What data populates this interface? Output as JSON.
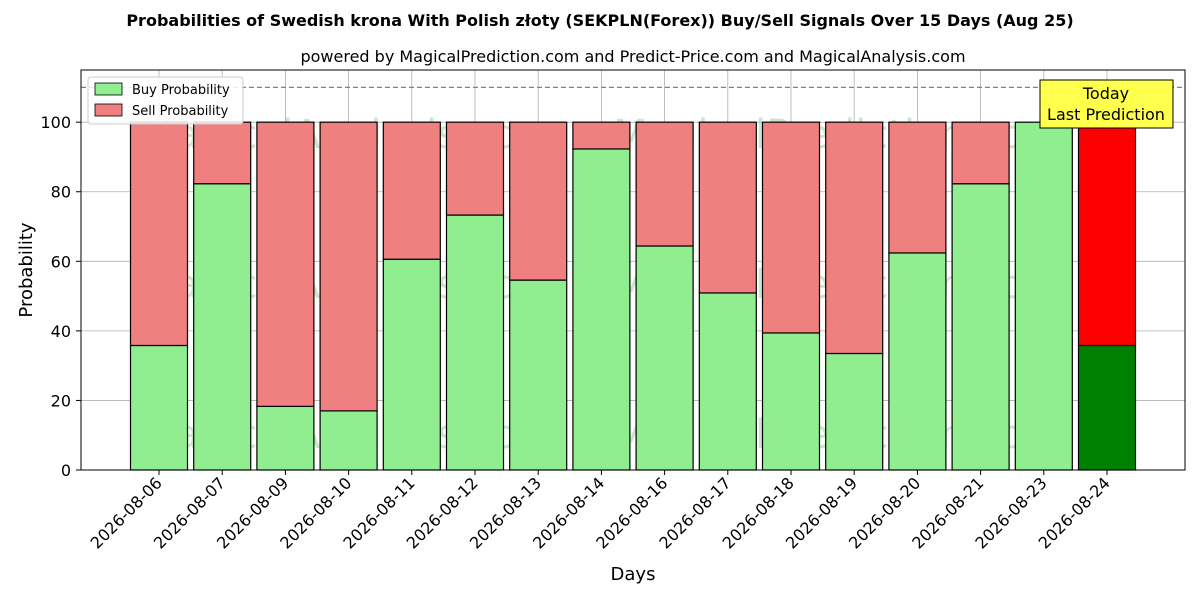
{
  "chart_data": {
    "type": "bar",
    "stacked": true,
    "title": "Probabilities of Swedish krona With Polish złoty (SEKPLN(Forex)) Buy/Sell Signals Over 15 Days (Aug 25)",
    "subtitle": "powered by MagicalPrediction.com and Predict-Price.com and MagicalAnalysis.com",
    "xlabel": "Days",
    "ylabel": "Probability",
    "ylim": [
      0,
      115
    ],
    "yticks": [
      "0",
      "20",
      "40",
      "60",
      "80",
      "100"
    ],
    "grid": true,
    "legend_position": "top-left",
    "reference_line": 110,
    "categories": [
      "2026-08-06",
      "2026-08-07",
      "2026-08-09",
      "2026-08-10",
      "2026-08-11",
      "2026-08-12",
      "2026-08-13",
      "2026-08-14",
      "2026-08-16",
      "2026-08-17",
      "2026-08-18",
      "2026-08-19",
      "2026-08-20",
      "2026-08-21",
      "2026-08-23",
      "2026-08-24"
    ],
    "series": [
      {
        "name": "Buy Probability",
        "color": "#90ee90",
        "highlight_color": "#008000",
        "values": [
          35.8,
          82.3,
          18.3,
          17.0,
          60.6,
          73.3,
          54.6,
          92.3,
          64.4,
          50.9,
          39.4,
          33.5,
          62.4,
          82.3,
          100,
          35.8
        ]
      },
      {
        "name": "Sell Probability",
        "color": "#f08080",
        "highlight_color": "#ff0000",
        "values": [
          64.2,
          17.7,
          81.7,
          83.0,
          39.4,
          26.7,
          45.4,
          7.7,
          35.6,
          49.1,
          60.6,
          66.5,
          37.6,
          17.7,
          0,
          64.2
        ]
      }
    ],
    "annotation": {
      "line1": "Today",
      "line2": "Last Prediction",
      "background": "#ffff4d"
    },
    "watermarks": [
      "MagicalAnalysis.com",
      "MagicalPrediction.com"
    ]
  }
}
